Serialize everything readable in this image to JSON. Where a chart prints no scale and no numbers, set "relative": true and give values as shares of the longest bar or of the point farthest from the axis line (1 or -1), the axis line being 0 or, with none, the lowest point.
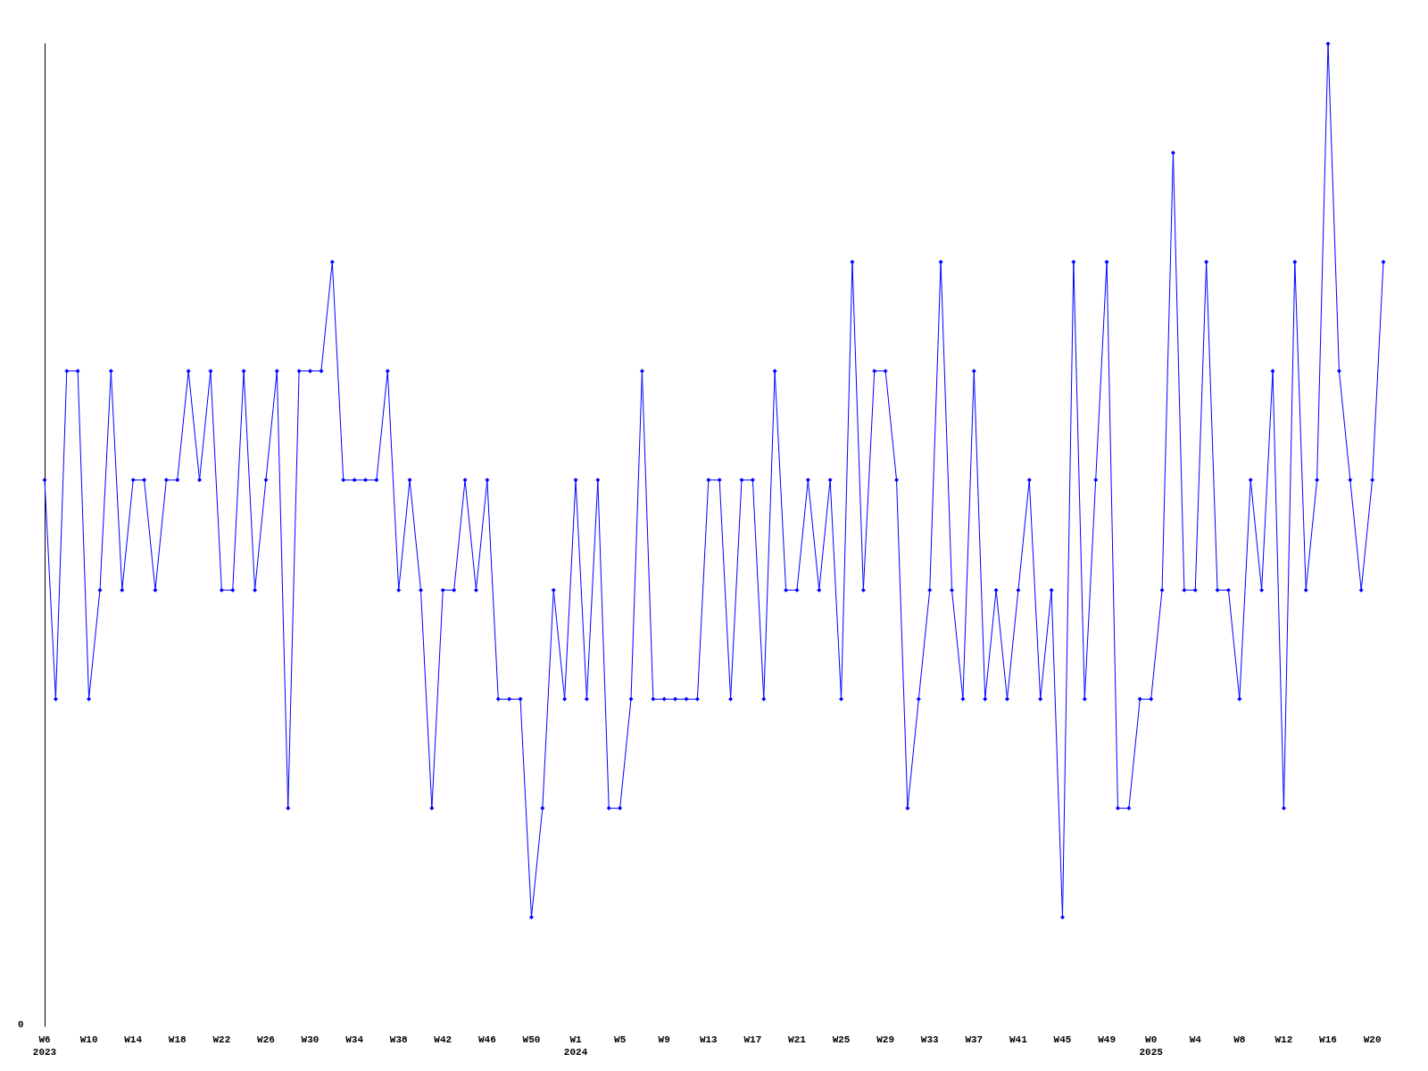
{
  "chart_data": {
    "type": "line",
    "relative": true,
    "color": "#0000ff",
    "marker": "diamond",
    "line_style": "solid",
    "grid": false,
    "annotations": [
      "0"
    ],
    "categories": [
      "W6\n2023",
      null,
      null,
      null,
      "W10",
      null,
      null,
      null,
      "W14",
      null,
      null,
      null,
      "W18",
      null,
      null,
      null,
      "W22",
      null,
      null,
      null,
      "W26",
      null,
      null,
      null,
      "W30",
      null,
      null,
      null,
      "W34",
      null,
      null,
      null,
      "W38",
      null,
      null,
      null,
      "W42",
      null,
      null,
      null,
      "W46",
      null,
      null,
      null,
      "W50",
      null,
      null,
      null,
      "W1\n2024",
      null,
      null,
      null,
      "W5",
      null,
      null,
      null,
      "W9",
      null,
      null,
      null,
      "W13",
      null,
      null,
      null,
      "W17",
      null,
      null,
      null,
      "W21",
      null,
      null,
      null,
      "W25",
      null,
      null,
      null,
      "W29",
      null,
      null,
      null,
      "W33",
      null,
      null,
      null,
      "W37",
      null,
      null,
      null,
      "W41",
      null,
      null,
      null,
      "W45",
      null,
      null,
      null,
      "W49",
      null,
      null,
      null,
      "W0\n2025",
      null,
      null,
      null,
      "W4",
      null,
      null,
      null,
      "W8",
      null,
      null,
      null,
      "W12",
      null,
      null,
      null,
      "W16",
      null,
      null,
      null,
      "W20",
      null
    ],
    "values": [
      0.556,
      0.333,
      0.667,
      0.667,
      0.333,
      0.444,
      0.667,
      0.444,
      0.556,
      0.556,
      0.444,
      0.556,
      0.556,
      0.667,
      0.556,
      0.667,
      0.444,
      0.444,
      0.667,
      0.444,
      0.556,
      0.667,
      0.222,
      0.667,
      0.667,
      0.667,
      0.778,
      0.556,
      0.556,
      0.556,
      0.556,
      0.667,
      0.444,
      0.556,
      0.444,
      0.222,
      0.444,
      0.444,
      0.556,
      0.444,
      0.556,
      0.333,
      0.333,
      0.333,
      0.111,
      0.222,
      0.444,
      0.333,
      0.556,
      0.333,
      0.556,
      0.222,
      0.222,
      0.333,
      0.667,
      0.333,
      0.333,
      0.333,
      0.333,
      0.333,
      0.556,
      0.556,
      0.333,
      0.556,
      0.556,
      0.333,
      0.667,
      0.444,
      0.444,
      0.556,
      0.444,
      0.556,
      0.333,
      0.778,
      0.444,
      0.667,
      0.667,
      0.556,
      0.222,
      0.333,
      0.444,
      0.778,
      0.444,
      0.333,
      0.667,
      0.333,
      0.444,
      0.333,
      0.444,
      0.556,
      0.333,
      0.444,
      0.111,
      0.778,
      0.333,
      0.556,
      0.778,
      0.222,
      0.222,
      0.333,
      0.333,
      0.444,
      0.889,
      0.444,
      0.444,
      0.778,
      0.444,
      0.444,
      0.333,
      0.556,
      0.444,
      0.667,
      0.222,
      0.778,
      0.444,
      0.556,
      1,
      0.667,
      0.556,
      0.444,
      0.556,
      0.778
    ]
  }
}
